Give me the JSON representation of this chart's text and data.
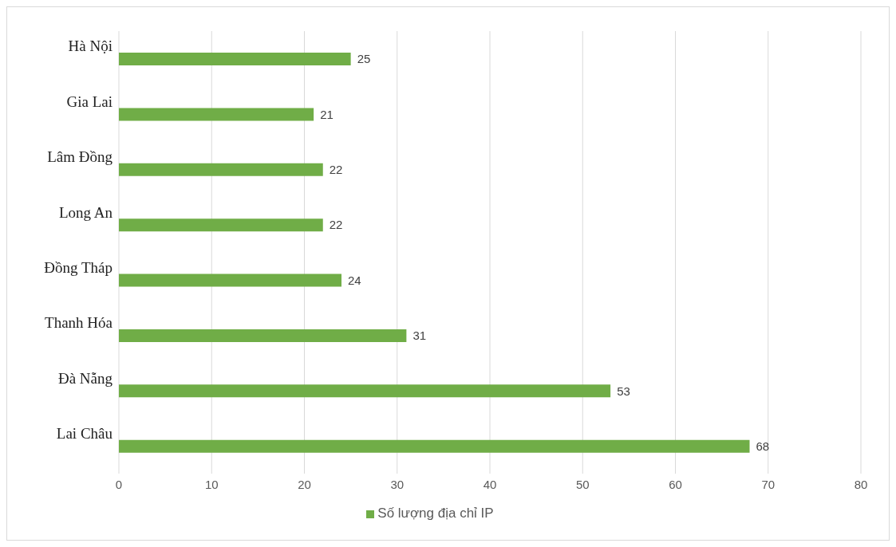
{
  "chart_data": {
    "type": "bar",
    "orientation": "horizontal",
    "categories": [
      "Hà Nội",
      "Gia Lai",
      "Lâm Đồng",
      "Long An",
      "Đồng Tháp",
      "Thanh Hóa",
      "Đà Nẵng",
      "Lai Châu"
    ],
    "series": [
      {
        "name": "Số lượng địa chỉ IP",
        "color": "#70ad47",
        "values": [
          25,
          21,
          22,
          22,
          24,
          31,
          53,
          68
        ]
      }
    ],
    "xlim": [
      0,
      80
    ],
    "xticks": [
      0,
      10,
      20,
      30,
      40,
      50,
      60,
      70,
      80
    ],
    "grid": "x",
    "legend": "bottom",
    "data_labels": true
  }
}
